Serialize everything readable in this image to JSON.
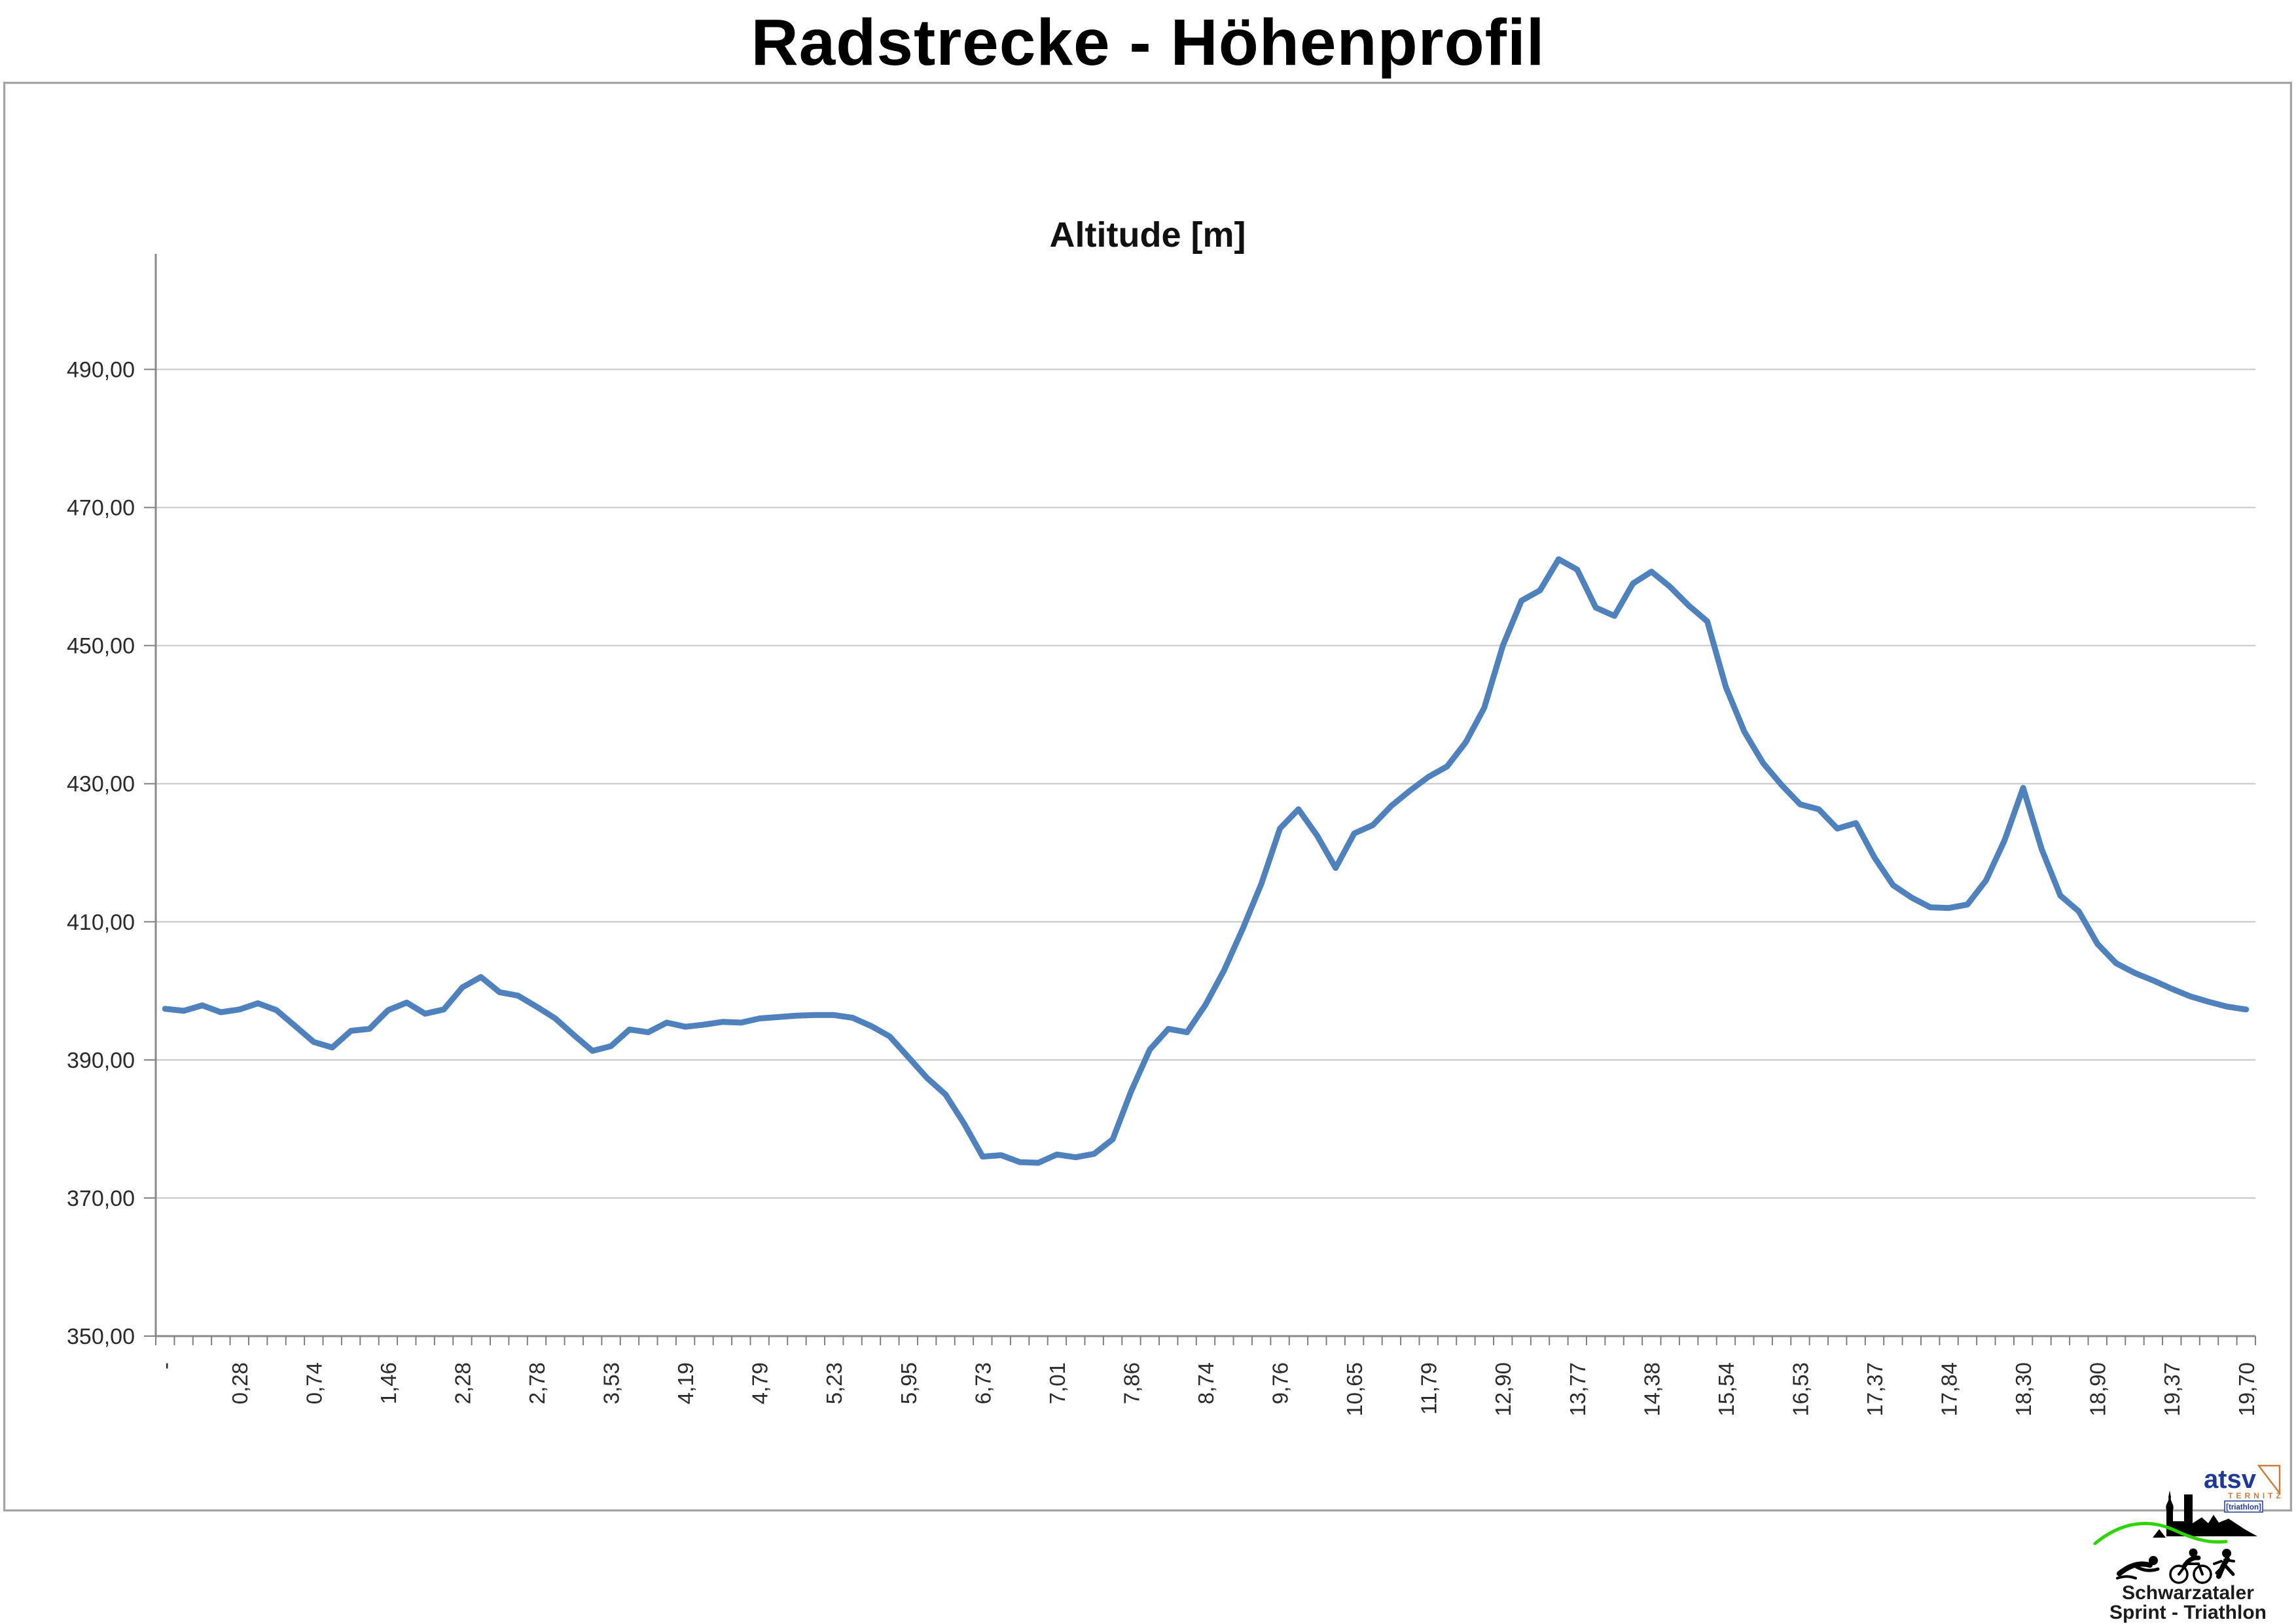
{
  "page": {
    "title": "Radstrecke - Höhenprofil"
  },
  "chart_data": {
    "type": "line",
    "title": "Altitude [m]",
    "xlabel": "",
    "ylabel": "",
    "ylim": [
      350,
      500
    ],
    "grid": true,
    "legend_position": "none",
    "yticks": [
      350,
      370,
      390,
      410,
      430,
      450,
      470,
      490
    ],
    "ytick_labels": [
      "350,00",
      "370,00",
      "390,00",
      "410,00",
      "430,00",
      "450,00",
      "470,00",
      "490,00"
    ],
    "x_major_labels": [
      "-",
      "0,28",
      "0,74",
      "1,46",
      "2,28",
      "2,78",
      "3,53",
      "4,19",
      "4,79",
      "5,23",
      "5,95",
      "6,73",
      "7,01",
      "7,86",
      "8,74",
      "9,76",
      "10,65",
      "11,79",
      "12,90",
      "13,77",
      "14,38",
      "15,54",
      "16,53",
      "17,37",
      "17,84",
      "18,30",
      "18,90",
      "19,37",
      "19,70"
    ],
    "label_every_n_points": 4,
    "series": [
      {
        "name": "Altitude [m]",
        "color": "#4F81BD",
        "values": [
          397.4,
          397.1,
          397.9,
          396.9,
          397.3,
          398.2,
          397.2,
          394.9,
          392.6,
          391.8,
          394.2,
          394.5,
          397.2,
          398.3,
          396.7,
          397.3,
          400.5,
          402.0,
          399.8,
          399.3,
          397.7,
          396.0,
          393.6,
          391.3,
          392.0,
          394.4,
          394.0,
          395.4,
          394.8,
          395.1,
          395.5,
          395.4,
          396.0,
          396.2,
          396.4,
          396.5,
          396.5,
          396.1,
          394.9,
          393.4,
          390.4,
          387.4,
          385.0,
          380.8,
          376.0,
          376.2,
          375.2,
          375.1,
          376.3,
          375.9,
          376.4,
          378.5,
          385.5,
          391.5,
          394.5,
          394.0,
          398.0,
          403.0,
          409.0,
          415.5,
          423.5,
          426.3,
          422.5,
          417.8,
          422.8,
          424.0,
          426.8,
          429.0,
          431.0,
          432.5,
          436.0,
          441.0,
          450.0,
          456.5,
          458.0,
          462.5,
          461.0,
          455.5,
          454.3,
          459.0,
          460.7,
          458.5,
          455.8,
          453.5,
          444.0,
          437.5,
          433.0,
          429.8,
          427.0,
          426.3,
          423.5,
          424.3,
          419.3,
          415.3,
          413.5,
          412.1,
          412.0,
          412.5,
          416.0,
          421.8,
          429.4,
          420.5,
          413.8,
          411.5,
          406.8,
          404.0,
          402.6,
          401.5,
          400.3,
          399.2,
          398.4,
          397.7,
          397.3
        ]
      }
    ],
    "colors": {
      "gridline": "#c6c6c6",
      "axis": "#898989",
      "tick": "#7f7f7f",
      "tick_label": "#2b2b2b"
    }
  },
  "logo": {
    "club_short": "atsv",
    "club_city": "TERNITZ",
    "club_section": "[triathlon]",
    "event_line1": "Schwarzataler",
    "event_line2": "Sprint - Triathlon",
    "accent_green": "#2fd400",
    "accent_blue": "#1f3a93",
    "accent_orange": "#c87e3c"
  }
}
